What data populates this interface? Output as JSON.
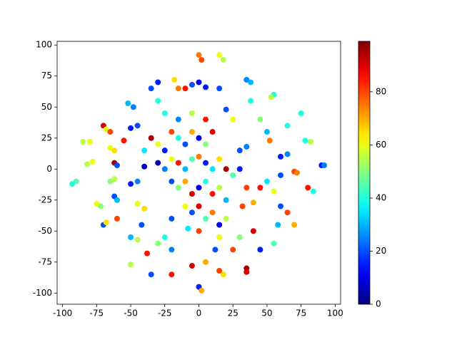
{
  "chart_data": {
    "type": "scatter",
    "colormap": "jet",
    "x": [
      -93,
      -90,
      -85,
      -80,
      -82,
      -78,
      -75,
      -72,
      -70,
      -68,
      -70,
      -68,
      -65,
      -65,
      -62,
      -65,
      -62,
      -62,
      -60,
      -62,
      -60,
      -60,
      -52,
      -48,
      -50,
      -45,
      -55,
      -50,
      -45,
      -50,
      -45,
      -50,
      -45,
      -40,
      -42,
      -38,
      -35,
      -35,
      -30,
      -30,
      -30,
      -25,
      -20,
      -20,
      -20,
      -18,
      -15,
      -10,
      -5,
      0,
      5,
      0,
      2,
      15,
      18,
      15,
      -5,
      0,
      2,
      5,
      15,
      18,
      12,
      25,
      35,
      38,
      38,
      35,
      35,
      30,
      40,
      45,
      55,
      55,
      53,
      45,
      50,
      52,
      50,
      45,
      40,
      60,
      58,
      65,
      70,
      65,
      60,
      65,
      60,
      55,
      70,
      72,
      75,
      78,
      82,
      80,
      84,
      90,
      92,
      32,
      -35,
      -30,
      -25,
      -20,
      -15,
      -10,
      -5,
      0,
      5,
      10,
      -30,
      -25,
      -20,
      -15,
      -10,
      -5,
      0,
      5,
      10,
      15,
      20,
      -20,
      -15,
      -10,
      -5,
      0,
      5,
      10,
      15,
      20,
      -10,
      -5,
      0,
      5,
      10,
      15,
      20,
      -15,
      -5,
      5,
      20,
      25,
      -40,
      -40,
      30,
      25,
      -25,
      0,
      -8,
      15,
      30,
      35,
      35
    ],
    "y": [
      -12,
      -10,
      22,
      22,
      4,
      6,
      -28,
      -30,
      -45,
      -43,
      35,
      32,
      30,
      17,
      15,
      -10,
      -8,
      -22,
      -25,
      5,
      3,
      -40,
      53,
      50,
      33,
      35,
      23,
      -12,
      -10,
      -55,
      -57,
      -77,
      -28,
      -32,
      -45,
      -68,
      -85,
      65,
      70,
      55,
      -60,
      -55,
      -40,
      -65,
      -85,
      72,
      65,
      65,
      68,
      70,
      66,
      92,
      88,
      92,
      88,
      65,
      -78,
      -95,
      -98,
      -75,
      -82,
      -85,
      -65,
      -65,
      72,
      70,
      55,
      -80,
      -83,
      -55,
      -50,
      -65,
      -60,
      60,
      58,
      40,
      30,
      23,
      -10,
      -15,
      -27,
      -30,
      -45,
      -35,
      -45,
      35,
      10,
      12,
      -5,
      -18,
      -2,
      -3,
      45,
      23,
      22,
      -15,
      -18,
      3,
      3,
      -30,
      25,
      20,
      15,
      30,
      25,
      20,
      30,
      25,
      20,
      30,
      5,
      0,
      8,
      5,
      0,
      8,
      10,
      5,
      0,
      8,
      0,
      -10,
      -15,
      -10,
      -20,
      -15,
      -10,
      -20,
      -15,
      -25,
      -30,
      -35,
      -30,
      -40,
      -35,
      -45,
      -40,
      40,
      45,
      40,
      48,
      40,
      2,
      15,
      15,
      -5,
      45,
      -50,
      -48,
      -55,
      0,
      -15,
      18
    ],
    "values": [
      40,
      45,
      55,
      60,
      55,
      60,
      60,
      50,
      20,
      65,
      90,
      60,
      80,
      60,
      65,
      50,
      55,
      20,
      30,
      95,
      20,
      80,
      30,
      25,
      15,
      20,
      85,
      15,
      25,
      30,
      55,
      55,
      60,
      65,
      20,
      85,
      20,
      20,
      15,
      40,
      50,
      40,
      20,
      25,
      85,
      65,
      75,
      85,
      20,
      10,
      15,
      75,
      80,
      60,
      55,
      20,
      90,
      15,
      70,
      70,
      80,
      65,
      20,
      80,
      25,
      30,
      40,
      95,
      90,
      50,
      90,
      15,
      45,
      40,
      55,
      50,
      30,
      75,
      35,
      85,
      70,
      20,
      30,
      80,
      70,
      40,
      15,
      25,
      20,
      60,
      80,
      75,
      40,
      40,
      55,
      85,
      40,
      15,
      25,
      80,
      95,
      60,
      15,
      80,
      40,
      20,
      70,
      10,
      50,
      90,
      5,
      25,
      60,
      85,
      30,
      45,
      75,
      15,
      35,
      65,
      95,
      20,
      50,
      70,
      90,
      10,
      40,
      85,
      55,
      30,
      60,
      20,
      90,
      45,
      75,
      10,
      55,
      25,
      55,
      85,
      20,
      60,
      5,
      35,
      20,
      45,
      40,
      80,
      35,
      60,
      15,
      80,
      25
    ],
    "xlim": [
      -104,
      104
    ],
    "ylim": [
      -109,
      103
    ],
    "xticks": [
      -100,
      -75,
      -50,
      -25,
      0,
      25,
      50,
      75,
      100
    ],
    "yticks": [
      -100,
      -75,
      -50,
      -25,
      0,
      25,
      50,
      75,
      100
    ],
    "clim": [
      0,
      99
    ],
    "cticks": [
      0,
      20,
      40,
      60,
      80
    ]
  }
}
